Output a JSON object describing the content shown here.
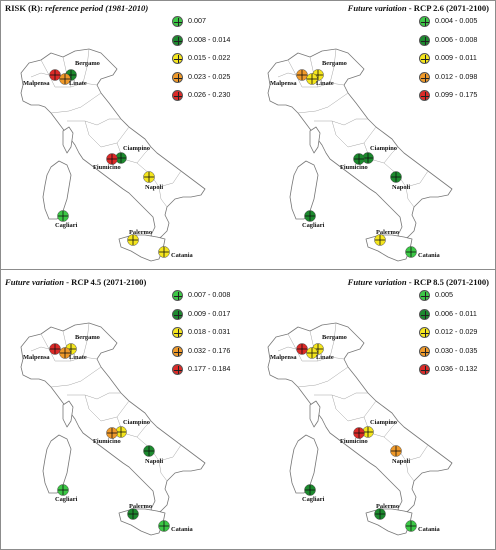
{
  "panels": [
    {
      "id": "p0",
      "title_pre": "RISK (R): ",
      "title_italic": "reference period (1981-2010)",
      "title_post": "",
      "title_align": "left",
      "legend": [
        {
          "label": "0.007",
          "color": "#3cc846"
        },
        {
          "label": "0.008 - 0.014",
          "color": "#1c8a2e"
        },
        {
          "label": "0.015 - 0.022",
          "color": "#f5e61e"
        },
        {
          "label": "0.023 - 0.025",
          "color": "#f09a2a"
        },
        {
          "label": "0.026 - 0.230",
          "color": "#dc2a28"
        }
      ],
      "airports": [
        {
          "name": "Bergamo",
          "color": "#1c8a2e"
        },
        {
          "name": "Malpensa",
          "color": "#dc2a28"
        },
        {
          "name": "Linate",
          "color": "#f09a2a"
        },
        {
          "name": "Ciampino",
          "color": "#1c8a2e"
        },
        {
          "name": "Fiumicino",
          "color": "#dc2a28"
        },
        {
          "name": "Napoli",
          "color": "#f5e61e"
        },
        {
          "name": "Cagliari",
          "color": "#3cc846"
        },
        {
          "name": "Palermo",
          "color": "#f5e61e"
        },
        {
          "name": "Catania",
          "color": "#f5e61e"
        }
      ]
    },
    {
      "id": "p1",
      "title_pre": "",
      "title_italic": "Future variation",
      "title_post": " - RCP 2.6 (2071-2100)",
      "title_align": "right",
      "legend": [
        {
          "label": "0.004 - 0.005",
          "color": "#3cc846"
        },
        {
          "label": "0.006 - 0.008",
          "color": "#1c8a2e"
        },
        {
          "label": "0.009 - 0.011",
          "color": "#f5e61e"
        },
        {
          "label": "0.012 - 0.098",
          "color": "#f09a2a"
        },
        {
          "label": "0.099 - 0.175",
          "color": "#dc2a28"
        }
      ],
      "airports": [
        {
          "name": "Bergamo",
          "color": "#f5e61e"
        },
        {
          "name": "Malpensa",
          "color": "#f09a2a"
        },
        {
          "name": "Linate",
          "color": "#f5e61e"
        },
        {
          "name": "Ciampino",
          "color": "#1c8a2e"
        },
        {
          "name": "Fiumicino",
          "color": "#1c8a2e"
        },
        {
          "name": "Napoli",
          "color": "#1c8a2e"
        },
        {
          "name": "Cagliari",
          "color": "#1c8a2e"
        },
        {
          "name": "Palermo",
          "color": "#f5e61e"
        },
        {
          "name": "Catania",
          "color": "#3cc846"
        }
      ]
    },
    {
      "id": "p2",
      "title_pre": "",
      "title_italic": "Future variation",
      "title_post": " - RCP 4.5 (2071-2100)",
      "title_align": "left",
      "legend": [
        {
          "label": "0.007 - 0.008",
          "color": "#3cc846"
        },
        {
          "label": "0.009 - 0.017",
          "color": "#1c8a2e"
        },
        {
          "label": "0.018 - 0.031",
          "color": "#f5e61e"
        },
        {
          "label": "0.032 - 0.176",
          "color": "#f09a2a"
        },
        {
          "label": "0.177 - 0.184",
          "color": "#dc2a28"
        }
      ],
      "airports": [
        {
          "name": "Bergamo",
          "color": "#f5e61e"
        },
        {
          "name": "Malpensa",
          "color": "#dc2a28"
        },
        {
          "name": "Linate",
          "color": "#f09a2a"
        },
        {
          "name": "Ciampino",
          "color": "#f5e61e"
        },
        {
          "name": "Fiumicino",
          "color": "#f09a2a"
        },
        {
          "name": "Napoli",
          "color": "#1c8a2e"
        },
        {
          "name": "Cagliari",
          "color": "#3cc846"
        },
        {
          "name": "Palermo",
          "color": "#1c8a2e"
        },
        {
          "name": "Catania",
          "color": "#3cc846"
        }
      ]
    },
    {
      "id": "p3",
      "title_pre": "",
      "title_italic": "Future variation",
      "title_post": " - RCP 8.5 (2071-2100)",
      "title_align": "right",
      "legend": [
        {
          "label": "0.005",
          "color": "#3cc846"
        },
        {
          "label": "0.006 - 0.011",
          "color": "#1c8a2e"
        },
        {
          "label": "0.012 - 0.029",
          "color": "#f5e61e"
        },
        {
          "label": "0.030 - 0.035",
          "color": "#f09a2a"
        },
        {
          "label": "0.036 - 0.132",
          "color": "#dc2a28"
        }
      ],
      "airports": [
        {
          "name": "Bergamo",
          "color": "#f5e61e"
        },
        {
          "name": "Malpensa",
          "color": "#dc2a28"
        },
        {
          "name": "Linate",
          "color": "#f5e61e"
        },
        {
          "name": "Ciampino",
          "color": "#f5e61e"
        },
        {
          "name": "Fiumicino",
          "color": "#dc2a28"
        },
        {
          "name": "Napoli",
          "color": "#f09a2a"
        },
        {
          "name": "Cagliari",
          "color": "#1c8a2e"
        },
        {
          "name": "Palermo",
          "color": "#1c8a2e"
        },
        {
          "name": "Catania",
          "color": "#3cc846"
        }
      ]
    }
  ]
}
